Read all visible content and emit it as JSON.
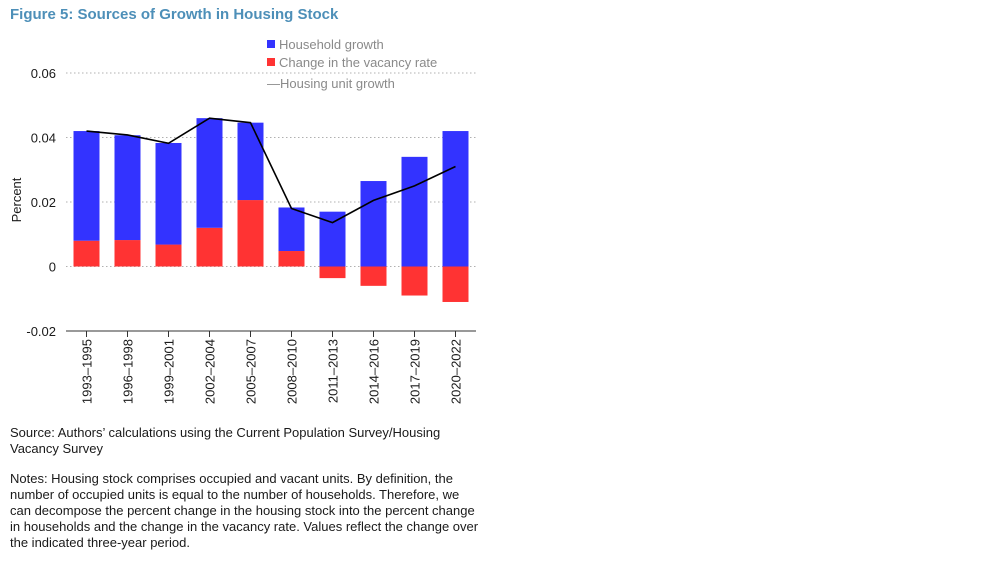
{
  "chart_data": {
    "type": "bar",
    "title": "Figure 5: Sources of Growth in Housing Stock",
    "xlabel": "",
    "ylabel": "Percent",
    "ylim": [
      -0.02,
      0.06
    ],
    "yticks": [
      -0.02,
      0,
      0.02,
      0.04,
      0.06
    ],
    "ytick_labels": [
      "-0.02",
      "0",
      "0.02",
      "0.04",
      "0.06"
    ],
    "grid": true,
    "stacked": true,
    "legend_position": "top-right",
    "categories": [
      "1993–1995",
      "1996–1998",
      "1999–2001",
      "2002–2004",
      "2005–2007",
      "2008–2010",
      "2011–2013",
      "2014–2016",
      "2017–2019",
      "2020–2022"
    ],
    "series": [
      {
        "name": "Household growth",
        "type": "bar",
        "color": "#3333ff",
        "values": [
          0.034,
          0.0325,
          0.0315,
          0.034,
          0.024,
          0.0135,
          0.017,
          0.0265,
          0.034,
          0.042
        ]
      },
      {
        "name": "Change in the vacancy rate",
        "type": "bar",
        "color": "#ff3333",
        "values": [
          0.008,
          0.0082,
          0.0068,
          0.012,
          0.0206,
          0.0048,
          -0.0036,
          -0.006,
          -0.009,
          -0.011
        ]
      },
      {
        "name": "Housing unit growth",
        "type": "line",
        "color": "#000000",
        "values": [
          0.042,
          0.0408,
          0.0382,
          0.046,
          0.0446,
          0.018,
          0.0136,
          0.0205,
          0.025,
          0.031
        ]
      }
    ]
  },
  "legend": {
    "household": "Household growth",
    "vacancy": "Change in the vacancy rate",
    "housing_unit": "—Housing unit growth"
  },
  "source_text": "Source: Authors’ calculations using the Current Population Survey/Housing Vacancy Survey",
  "notes_text": "Notes: Housing stock comprises occupied and vacant units. By definition, the number of occupied units is equal to the number of households. Therefore, we can decompose the percent change in the housing stock into the percent change in households and the change in the vacancy rate. Values reflect the change over the indicated three-year period."
}
